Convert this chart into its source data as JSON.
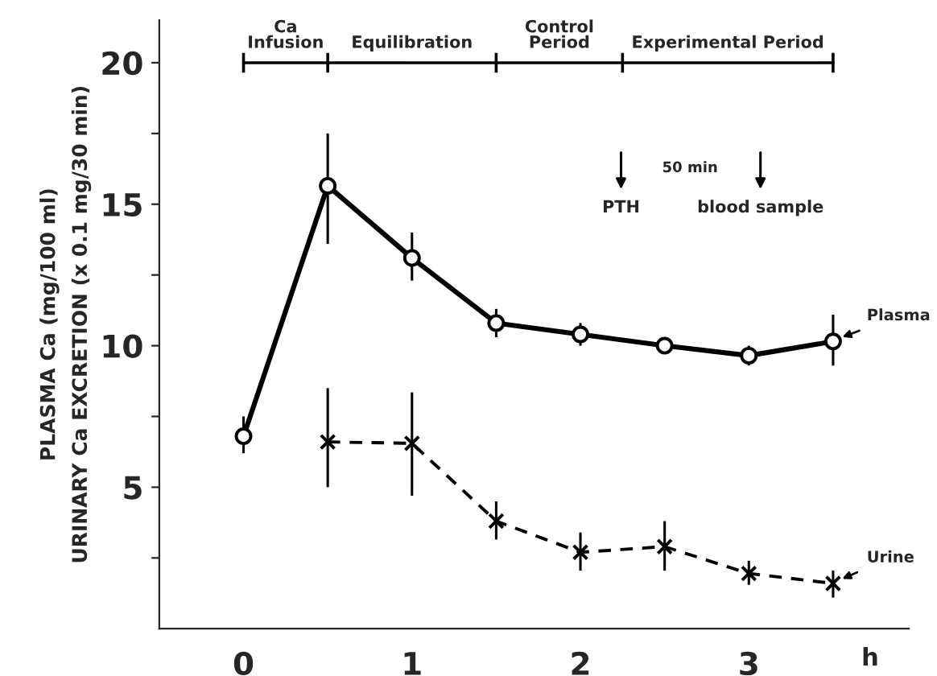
{
  "chart_data": {
    "type": "line",
    "xlabel": "h",
    "ylabel": "PLASMA Ca (mg/100 ml)\nURINARY Ca EXCRETION (x 0.1 mg/30 min)",
    "series": [
      {
        "name": "Plasma",
        "color": "#000000",
        "marker": "circle",
        "line_style": "solid",
        "x": [
          0,
          0.5,
          1,
          1.5,
          2,
          2.5,
          3,
          3.5
        ],
        "values": [
          6.8,
          15.65,
          13.1,
          10.8,
          10.4,
          10.0,
          9.65,
          10.15
        ],
        "errors": [
          [
            6.2,
            7.5
          ],
          [
            13.6,
            17.5
          ],
          [
            12.3,
            14.0
          ],
          [
            10.3,
            11.3
          ],
          [
            10.0,
            10.8
          ],
          null,
          [
            9.3,
            10.0
          ],
          [
            9.3,
            11.1
          ]
        ]
      },
      {
        "color": "#000000",
        "marker": "none",
        "line_style": "solid",
        "x": [
          0,
          0.5,
          1.5,
          2.25,
          3.5
        ],
        "values": [
          20,
          20,
          20,
          20,
          20
        ],
        "errors": [
          0.35,
          0.35,
          0.35,
          0.35,
          0.35
        ]
      },
      {
        "name": "Urine",
        "color": "#000000",
        "marker": "cross",
        "line_style": "dashed",
        "x": [
          0.5,
          1,
          1.5,
          2,
          2.5,
          3,
          3.5
        ],
        "values": [
          6.6,
          6.55,
          3.8,
          2.7,
          2.9,
          1.95,
          1.6
        ],
        "errors": [
          [
            5.0,
            8.5
          ],
          [
            4.7,
            8.35
          ],
          [
            3.15,
            4.5
          ],
          [
            2.05,
            3.4
          ],
          [
            2.05,
            3.8
          ],
          [
            1.55,
            2.4
          ],
          [
            1.1,
            2.05
          ]
        ]
      }
    ],
    "annotations": [
      "Ca\nInfusion",
      "Equilibration",
      "Control\nPeriod",
      "Experimental Period",
      "PTH",
      "blood sample",
      "50 min"
    ],
    "xlim": [
      -0.5,
      3.95
    ],
    "ylim": [
      0,
      21.5
    ],
    "xticks": [
      0,
      1,
      2,
      3
    ],
    "yticks": [
      {
        "value": 2.5,
        "label": null
      },
      5,
      {
        "value": 7.5,
        "label": null
      },
      10,
      {
        "value": 12.5,
        "label": null
      },
      15,
      {
        "value": 17.5,
        "label": null
      },
      20
    ],
    "grid": false,
    "legend": false
  }
}
